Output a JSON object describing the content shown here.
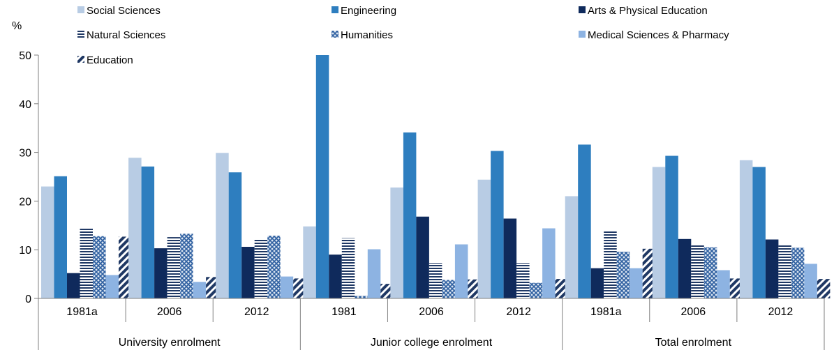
{
  "chart_data": {
    "type": "bar",
    "ylabel": "%",
    "ylim": [
      0,
      50
    ],
    "yticks": [
      0,
      10,
      20,
      30,
      40,
      50
    ],
    "grid": false,
    "legend_position": "top",
    "groups": [
      {
        "label": "University enrolment",
        "categories": [
          "1981a",
          "2006",
          "2012"
        ]
      },
      {
        "label": "Junior college enrolment",
        "categories": [
          "1981",
          "2006",
          "2012"
        ]
      },
      {
        "label": "Total enrolment",
        "categories": [
          "1981a",
          "2006",
          "2012"
        ]
      }
    ],
    "series": [
      {
        "name": "Social Sciences",
        "color": "#b8cce4",
        "pattern": "solid",
        "values": [
          23.0,
          28.9,
          29.9,
          14.8,
          22.8,
          24.4,
          21.0,
          27.0,
          28.4
        ]
      },
      {
        "name": "Engineering",
        "color": "#2e7ebf",
        "pattern": "solid",
        "values": [
          25.1,
          27.1,
          25.9,
          50.0,
          34.1,
          30.3,
          31.6,
          29.3,
          27.0
        ]
      },
      {
        "name": "Arts & Physical Education",
        "color": "#0f2a5c",
        "pattern": "solid",
        "values": [
          5.2,
          10.3,
          10.6,
          9.0,
          16.8,
          16.4,
          6.2,
          12.2,
          12.1
        ]
      },
      {
        "name": "Natural Sciences",
        "color": "#1f3864",
        "pattern": "horizontal-stripes",
        "values": [
          14.4,
          12.6,
          12.2,
          12.4,
          7.3,
          7.3,
          13.9,
          11.0,
          10.9
        ]
      },
      {
        "name": "Humanities",
        "color": "#2e5fa0",
        "pattern": "crosshatch",
        "values": [
          12.8,
          13.3,
          12.9,
          0.5,
          3.8,
          3.2,
          9.6,
          10.5,
          10.4
        ]
      },
      {
        "name": "Medical Sciences & Pharmacy",
        "color": "#8db3e2",
        "pattern": "solid",
        "values": [
          4.8,
          3.4,
          4.5,
          10.1,
          11.1,
          14.4,
          6.2,
          5.8,
          7.1
        ]
      },
      {
        "name": "Education",
        "color": "#1f3864",
        "pattern": "diagonal-stripes",
        "values": [
          12.7,
          4.4,
          4.1,
          3.0,
          3.9,
          4.0,
          10.2,
          4.1,
          4.0
        ]
      }
    ]
  }
}
